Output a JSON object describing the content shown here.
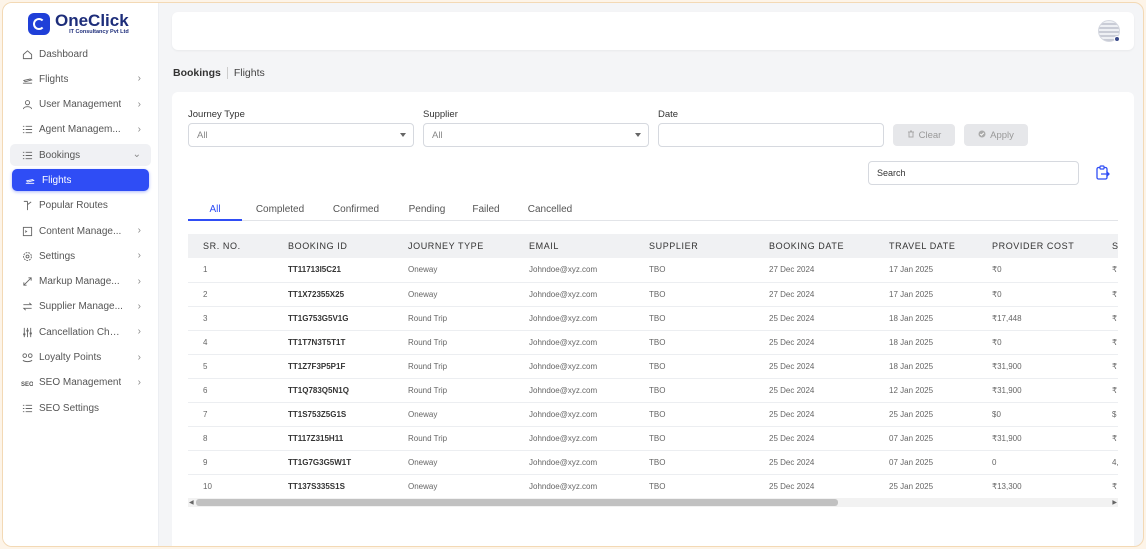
{
  "brand": {
    "title": "OneClick",
    "subtitle": "IT Consultancy Pvt Ltd"
  },
  "sidebar": {
    "items": [
      {
        "label": "Dashboard",
        "icon": "home-icon",
        "chevron": ""
      },
      {
        "label": "Flights",
        "icon": "plane-icon",
        "chevron": "›"
      },
      {
        "label": "User Management",
        "icon": "user-icon",
        "chevron": "›"
      },
      {
        "label": "Agent Managem...",
        "icon": "list-icon",
        "chevron": "›"
      },
      {
        "label": "Bookings",
        "icon": "list-icon",
        "chevron": "⌄"
      },
      {
        "label": "Flights",
        "icon": "plane-icon",
        "chevron": ""
      },
      {
        "label": "Popular Routes",
        "icon": "route-icon",
        "chevron": ""
      },
      {
        "label": "Content Manage...",
        "icon": "document-icon",
        "chevron": "›"
      },
      {
        "label": "Settings",
        "icon": "gear-icon",
        "chevron": "›"
      },
      {
        "label": "Markup Manage...",
        "icon": "arrows-icon",
        "chevron": "›"
      },
      {
        "label": "Supplier Manage...",
        "icon": "swap-icon",
        "chevron": "›"
      },
      {
        "label": "Cancellation Char...",
        "icon": "sliders-icon",
        "chevron": "›"
      },
      {
        "label": "Loyalty Points",
        "icon": "loyalty-icon",
        "chevron": "›"
      },
      {
        "label": "SEO Management",
        "icon": "seo-icon",
        "chevron": "›"
      },
      {
        "label": "SEO Settings",
        "icon": "list-icon",
        "chevron": ""
      }
    ]
  },
  "breadcrumb": {
    "main": "Bookings",
    "sub": "Flights"
  },
  "filters": {
    "journey_type": {
      "label": "Journey Type",
      "value": "All"
    },
    "supplier": {
      "label": "Supplier",
      "value": "All"
    },
    "date": {
      "label": "Date",
      "value": ""
    },
    "clear_label": "Clear",
    "apply_label": "Apply"
  },
  "search": {
    "placeholder": "Search"
  },
  "tabs": [
    "All",
    "Completed",
    "Confirmed",
    "Pending",
    "Failed",
    "Cancelled"
  ],
  "table": {
    "headers": [
      "SR. NO.",
      "BOOKING ID",
      "JOURNEY TYPE",
      "EMAIL",
      "SUPPLIER",
      "BOOKING DATE",
      "TRAVEL DATE",
      "PROVIDER COST",
      "S"
    ],
    "rows": [
      [
        "1",
        "TT11713I5C21",
        "Oneway",
        "Johndoe@xyz.com",
        "TBO",
        "27 Dec 2024",
        "17 Jan 2025",
        "₹0",
        "₹"
      ],
      [
        "2",
        "TT1X72355X25",
        "Oneway",
        "Johndoe@xyz.com",
        "TBO",
        "27 Dec 2024",
        "17 Jan 2025",
        "₹0",
        "₹"
      ],
      [
        "3",
        "TT1G753G5V1G",
        "Round Trip",
        "Johndoe@xyz.com",
        "TBO",
        "25 Dec 2024",
        "18 Jan 2025",
        "₹17,448",
        "₹"
      ],
      [
        "4",
        "TT1T7N3T5T1T",
        "Round Trip",
        "Johndoe@xyz.com",
        "TBO",
        "25 Dec 2024",
        "18 Jan 2025",
        "₹0",
        "₹"
      ],
      [
        "5",
        "TT1Z7F3P5P1F",
        "Round Trip",
        "Johndoe@xyz.com",
        "TBO",
        "25 Dec 2024",
        "18 Jan 2025",
        "₹31,900",
        "₹"
      ],
      [
        "6",
        "TT1Q783Q5N1Q",
        "Round Trip",
        "Johndoe@xyz.com",
        "TBO",
        "25 Dec 2024",
        "12 Jan 2025",
        "₹31,900",
        "₹"
      ],
      [
        "7",
        "TT1S753Z5G1S",
        "Oneway",
        "Johndoe@xyz.com",
        "TBO",
        "25 Dec 2024",
        "25 Jan 2025",
        "$0",
        "$"
      ],
      [
        "8",
        "TT117Z315H11",
        "Round Trip",
        "Johndoe@xyz.com",
        "TBO",
        "25 Dec 2024",
        "07 Jan 2025",
        "₹31,900",
        "₹"
      ],
      [
        "9",
        "TT1G7G3G5W1T",
        "Oneway",
        "Johndoe@xyz.com",
        "TBO",
        "25 Dec 2024",
        "07 Jan 2025",
        "0",
        "4,"
      ],
      [
        "10",
        "TT137S335S1S",
        "Oneway",
        "Johndoe@xyz.com",
        "TBO",
        "25 Dec 2024",
        "25 Jan 2025",
        "₹13,300",
        "₹"
      ]
    ]
  },
  "colors": {
    "accent": "#2f4df5",
    "brand": "#1d2d7a"
  }
}
